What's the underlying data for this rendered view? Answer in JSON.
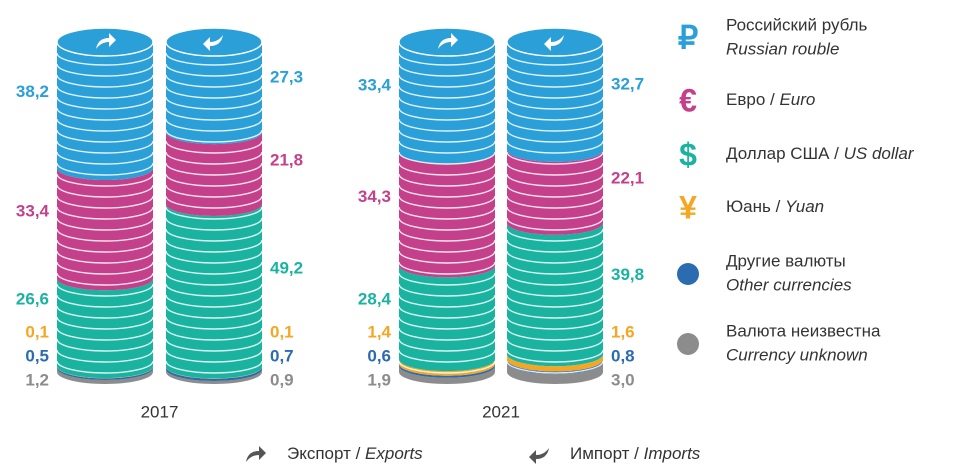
{
  "chart_data": {
    "type": "stacked-coin",
    "groups": [
      "2017",
      "2021"
    ],
    "flows": [
      "Экспорт",
      "Импорт"
    ],
    "flows_en": [
      "Exports",
      "Imports"
    ],
    "separator": " / ",
    "series": [
      {
        "name": "Российский рубль",
        "name_en": "Russian rouble",
        "symbol": "₽",
        "color": "#2a9fd8",
        "values": [
          38.2,
          27.3,
          33.4,
          32.7
        ],
        "value_labels": [
          "38,2",
          "27,3",
          "33,4",
          "32,7"
        ]
      },
      {
        "name": "Евро",
        "name_en": "Euro",
        "symbol": "€",
        "color": "#c5408a",
        "values": [
          33.4,
          21.8,
          34.3,
          22.1
        ],
        "value_labels": [
          "33,4",
          "21,8",
          "34,3",
          "22,1"
        ]
      },
      {
        "name": "Доллар США",
        "name_en": "US dollar",
        "symbol": "$",
        "color": "#19b3a0",
        "values": [
          26.6,
          49.2,
          28.4,
          39.8
        ],
        "value_labels": [
          "26,6",
          "49,2",
          "28,4",
          "39,8"
        ]
      },
      {
        "name": "Юань",
        "name_en": "Yuan",
        "symbol": "¥",
        "color": "#f5a623",
        "values": [
          0.1,
          0.1,
          1.4,
          1.6
        ],
        "value_labels": [
          "0,1",
          "0,1",
          "1,4",
          "1,6"
        ]
      },
      {
        "name": "Другие валюты",
        "name_en": "Other currencies",
        "color": "#2b6cb0",
        "values": [
          0.5,
          0.7,
          0.6,
          0.8
        ],
        "value_labels": [
          "0,5",
          "0,7",
          "0,6",
          "0,8"
        ]
      },
      {
        "name": "Валюта неизвестна",
        "name_en": "Currency unknown",
        "color": "#8c8c8c",
        "values": [
          1.2,
          0.9,
          1.9,
          3.0
        ],
        "value_labels": [
          "1,2",
          "0,9",
          "1,9",
          "3,0"
        ]
      }
    ]
  }
}
